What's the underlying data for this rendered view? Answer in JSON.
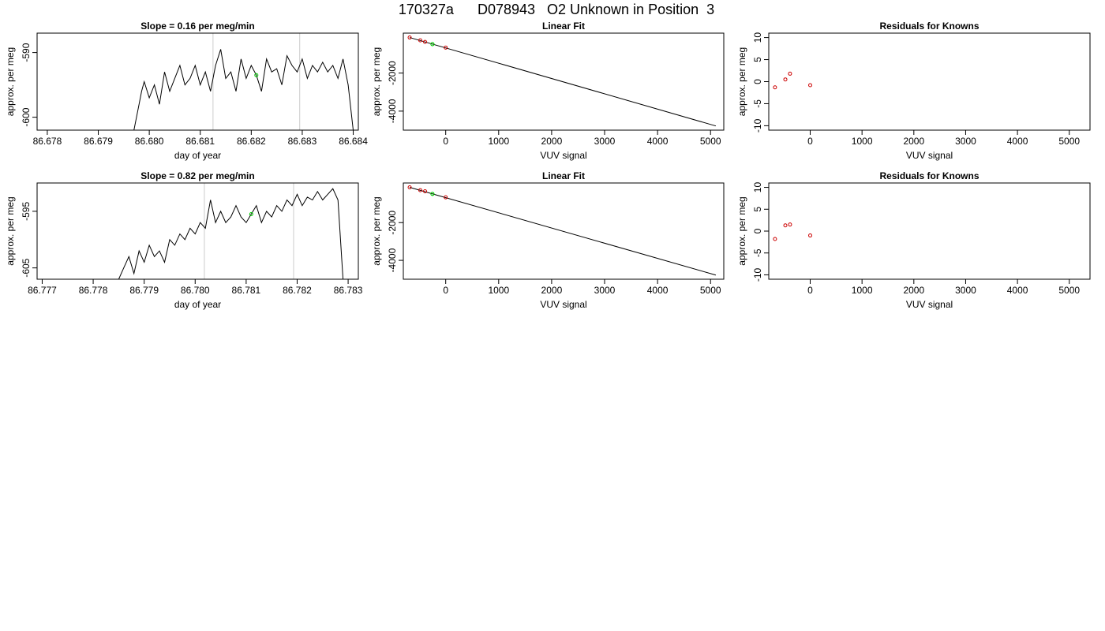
{
  "page": {
    "title": "170327a      D078943   O2 Unknown in Position  3"
  },
  "chart_data": [
    {
      "type": "line",
      "panel": "row1-timeseries",
      "title": "Slope =  0.16  per meg/min",
      "xlabel": "day of year",
      "ylabel": "approx. per meg",
      "xlim": [
        86.6778,
        86.6841
      ],
      "ylim": [
        -602,
        -587
      ],
      "xticks": [
        86.678,
        86.679,
        86.68,
        86.681,
        86.682,
        86.683,
        86.684
      ],
      "xtick_labels": [
        "86.678",
        "86.679",
        "86.680",
        "86.681",
        "86.682",
        "86.683",
        "86.684"
      ],
      "yticks": [
        -590,
        -600
      ],
      "ytick_labels": [
        "-590",
        "-600"
      ],
      "vlines": [
        86.68125,
        86.68295
      ],
      "highlight_point": {
        "x": 86.6821,
        "y": -593.5,
        "color": "#00cc00"
      },
      "series": [
        {
          "color": "#000000",
          "x": [
            86.6797,
            86.6798,
            86.67985,
            86.6799,
            86.68,
            86.6801,
            86.6802,
            86.6803,
            86.6804,
            86.6805,
            86.6806,
            86.6807,
            86.6808,
            86.6809,
            86.681,
            86.6811,
            86.6812,
            86.6813,
            86.6814,
            86.6815,
            86.6816,
            86.6817,
            86.6818,
            86.6819,
            86.682,
            86.6821,
            86.6822,
            86.6823,
            86.6824,
            86.6825,
            86.6826,
            86.6827,
            86.6828,
            86.6829,
            86.683,
            86.6831,
            86.6832,
            86.6833,
            86.6834,
            86.6835,
            86.6836,
            86.6837,
            86.6838,
            86.6839,
            86.684
          ],
          "y": [
            -602,
            -598,
            -596,
            -594.5,
            -597,
            -595,
            -598,
            -593,
            -596,
            -594,
            -592,
            -595,
            -594,
            -592,
            -595,
            -593,
            -596,
            -592,
            -589.5,
            -594,
            -593,
            -596,
            -591,
            -594,
            -592,
            -593.5,
            -596,
            -591,
            -593,
            -592.5,
            -595,
            -590.5,
            -592,
            -593,
            -591,
            -594,
            -592,
            -593,
            -591.5,
            -593,
            -592,
            -594,
            -591,
            -595,
            -602
          ]
        }
      ]
    },
    {
      "type": "scatter",
      "panel": "row1-linearfit",
      "title": "Linear Fit",
      "xlabel": "VUV signal",
      "ylabel": "approx. per meg",
      "xlim": [
        -800,
        5250
      ],
      "ylim": [
        -5000,
        100
      ],
      "xticks": [
        0,
        1000,
        2000,
        3000,
        4000,
        5000
      ],
      "xtick_labels": [
        "0",
        "1000",
        "2000",
        "3000",
        "4000",
        "5000"
      ],
      "yticks": [
        -2000,
        -4000
      ],
      "ytick_labels": [
        "-2000",
        "-4000"
      ],
      "fit_line": {
        "x": [
          -680,
          5100
        ],
        "y": [
          -130,
          -4780
        ]
      },
      "knowns": {
        "x": [
          -680,
          -480,
          -390,
          0
        ],
        "y": [
          -130,
          -280,
          -360,
          -660
        ]
      },
      "unknown": {
        "x": [
          -250,
          -250
        ],
        "y": [
          -480,
          -480
        ]
      }
    },
    {
      "type": "scatter",
      "panel": "row1-residuals",
      "title": "Residuals for Knowns",
      "xlabel": "VUV signal",
      "ylabel": "approx. per meg",
      "xlim": [
        -800,
        5400
      ],
      "ylim": [
        -11,
        11
      ],
      "xticks": [
        0,
        1000,
        2000,
        3000,
        4000,
        5000
      ],
      "xtick_labels": [
        "0",
        "1000",
        "2000",
        "3000",
        "4000",
        "5000"
      ],
      "yticks": [
        10,
        5,
        0,
        -5,
        -10
      ],
      "ytick_labels": [
        "10",
        "5",
        "0",
        "-5",
        "-10"
      ],
      "knowns": {
        "x": [
          -680,
          -480,
          -390,
          0
        ],
        "y": [
          -1.3,
          0.5,
          1.8,
          -0.8
        ]
      }
    },
    {
      "type": "line",
      "panel": "row2-timeseries",
      "title": "Slope =  0.82  per meg/min",
      "xlabel": "day of year",
      "ylabel": "approx. per meg",
      "xlim": [
        86.7769,
        86.7832
      ],
      "ylim": [
        -607,
        -590
      ],
      "xticks": [
        86.777,
        86.778,
        86.779,
        86.78,
        86.781,
        86.782,
        86.783
      ],
      "xtick_labels": [
        "86.777",
        "86.778",
        "86.779",
        "86.780",
        "86.781",
        "86.782",
        "86.783"
      ],
      "yticks": [
        -595,
        -605
      ],
      "ytick_labels": [
        "-595",
        "-605"
      ],
      "vlines": [
        86.78018,
        86.78193
      ],
      "highlight_point": {
        "x": 86.7811,
        "y": -595.5,
        "color": "#00cc00"
      },
      "series": [
        {
          "color": "#000000",
          "x": [
            86.7785,
            86.7786,
            86.7787,
            86.7788,
            86.7789,
            86.779,
            86.7791,
            86.7792,
            86.7793,
            86.7794,
            86.7795,
            86.7796,
            86.7797,
            86.7798,
            86.7799,
            86.78,
            86.7801,
            86.7802,
            86.7803,
            86.7804,
            86.7805,
            86.7806,
            86.7807,
            86.7808,
            86.7809,
            86.781,
            86.7811,
            86.7812,
            86.7813,
            86.7814,
            86.7815,
            86.7816,
            86.7817,
            86.7818,
            86.7819,
            86.782,
            86.7821,
            86.7822,
            86.7823,
            86.7824,
            86.7825,
            86.7826,
            86.7827,
            86.7828,
            86.7829
          ],
          "y": [
            -607,
            -605,
            -603,
            -606,
            -602,
            -604,
            -601,
            -603,
            -602,
            -604,
            -600,
            -601,
            -599,
            -600,
            -598,
            -599,
            -597,
            -598,
            -593,
            -597,
            -595,
            -597,
            -596,
            -594,
            -596,
            -597,
            -595.5,
            -594,
            -597,
            -595,
            -596,
            -594,
            -595,
            -593,
            -594,
            -592,
            -594,
            -592.5,
            -593,
            -591.5,
            -593,
            -592,
            -591,
            -593,
            -607
          ]
        }
      ]
    },
    {
      "type": "scatter",
      "panel": "row2-linearfit",
      "title": "Linear Fit",
      "xlabel": "VUV signal",
      "ylabel": "approx. per meg",
      "xlim": [
        -800,
        5250
      ],
      "ylim": [
        -5000,
        100
      ],
      "xticks": [
        0,
        1000,
        2000,
        3000,
        4000,
        5000
      ],
      "xtick_labels": [
        "0",
        "1000",
        "2000",
        "3000",
        "4000",
        "5000"
      ],
      "yticks": [
        -2000,
        -4000
      ],
      "ytick_labels": [
        "-2000",
        "-4000"
      ],
      "fit_line": {
        "x": [
          -680,
          5100
        ],
        "y": [
          -130,
          -4780
        ]
      },
      "knowns": {
        "x": [
          -680,
          -480,
          -390,
          0
        ],
        "y": [
          -130,
          -280,
          -340,
          -660
        ]
      },
      "unknown": {
        "x": [
          -250,
          -250
        ],
        "y": [
          -480,
          -480
        ]
      }
    },
    {
      "type": "scatter",
      "panel": "row2-residuals",
      "title": "Residuals for Knowns",
      "xlabel": "VUV signal",
      "ylabel": "approx. per meg",
      "xlim": [
        -800,
        5400
      ],
      "ylim": [
        -11,
        11
      ],
      "xticks": [
        0,
        1000,
        2000,
        3000,
        4000,
        5000
      ],
      "xtick_labels": [
        "0",
        "1000",
        "2000",
        "3000",
        "4000",
        "5000"
      ],
      "yticks": [
        10,
        5,
        0,
        -5,
        -10
      ],
      "ytick_labels": [
        "10",
        "5",
        "0",
        "-5",
        "-10"
      ],
      "knowns": {
        "x": [
          -680,
          -480,
          -390,
          0
        ],
        "y": [
          -1.8,
          1.3,
          1.5,
          -1.0
        ]
      }
    }
  ],
  "colors": {
    "line": "#000000",
    "known_marker": "#cc0000",
    "unknown_marker": "#00cc00",
    "vline": "#cccccc"
  }
}
